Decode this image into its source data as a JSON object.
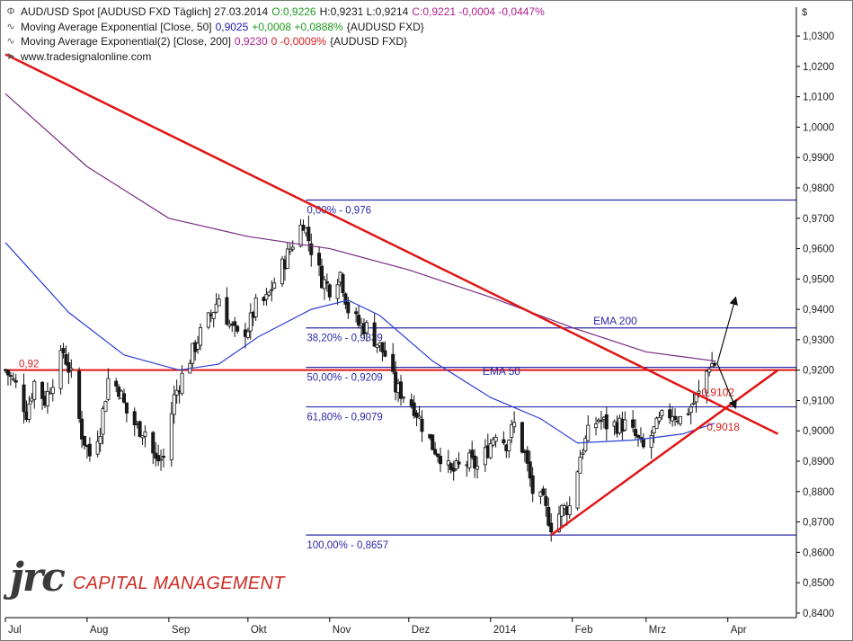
{
  "legend": {
    "row1": {
      "instrument": "AUD/USD Spot [AUDUSD FXD  Täglich] 27.03.2014",
      "open": "O:0,9226",
      "high_low": "H:0,9231 L:0,9214",
      "close_change": "C:0,9221 -0,0004 -0,0447%"
    },
    "row2": {
      "label": "Moving Average Exponential [Close, 50]",
      "value": "0,9025",
      "change": "+0,0008 +0,0888%",
      "source": "{AUDUSD FXD}"
    },
    "row3": {
      "label": "Moving Average Exponential(2) [Close, 200]",
      "value": "0,9230",
      "change": "0 -0,0009%",
      "source": "{AUDUSD FXD}"
    },
    "url": "www.tradesignalonline.com"
  },
  "logo": {
    "mark": "jrc",
    "text": "CAPITAL MANAGEMENT"
  },
  "colors": {
    "candle_up": "#ffffff",
    "candle_down": "#1a1a1a",
    "ema50": "#2a3fd4",
    "ema200": "#7a2a82",
    "trendline": "#e01515",
    "fib": "#2a2aa8",
    "annotation_red": "#d41c1c",
    "annotation_blue": "#2a2aa8"
  },
  "chart_data": {
    "type": "candlestick",
    "currency_label": "$",
    "ylim": [
      0.8385,
      1.0395
    ],
    "y_ticks": [
      "1,0300",
      "1,0200",
      "1,0100",
      "1,0000",
      "0,9900",
      "0,9800",
      "0,9700",
      "0,9600",
      "0,9500",
      "0,9400",
      "0,9300",
      "0,9200",
      "0,9100",
      "0,9000",
      "0,8900",
      "0,8800",
      "0,8700",
      "0,8600",
      "0,8500",
      "0,8400"
    ],
    "x_ticks": [
      "Jul",
      "Aug",
      "Sep",
      "Okt",
      "Nov",
      "Dez",
      "2014",
      "Feb",
      "Mrz",
      "Apr"
    ],
    "date_range": [
      "2013-07-01",
      "2014-04-27"
    ],
    "month_starts": [
      "2013-07-01",
      "2013-08-01",
      "2013-09-01",
      "2013-10-01",
      "2013-11-01",
      "2013-12-01",
      "2014-01-01",
      "2014-02-01",
      "2014-03-01",
      "2014-04-01"
    ],
    "close_series": {
      "dates": [
        "2013-07-01",
        "2013-07-05",
        "2013-07-09",
        "2013-07-12",
        "2013-07-16",
        "2013-07-19",
        "2013-07-23",
        "2013-07-26",
        "2013-07-30",
        "2013-08-02",
        "2013-08-06",
        "2013-08-09",
        "2013-08-13",
        "2013-08-16",
        "2013-08-20",
        "2013-08-23",
        "2013-08-27",
        "2013-08-30",
        "2013-09-03",
        "2013-09-06",
        "2013-09-10",
        "2013-09-13",
        "2013-09-17",
        "2013-09-20",
        "2013-09-24",
        "2013-09-27",
        "2013-10-01",
        "2013-10-04",
        "2013-10-08",
        "2013-10-11",
        "2013-10-15",
        "2013-10-18",
        "2013-10-22",
        "2013-10-25",
        "2013-10-29",
        "2013-11-01",
        "2013-11-05",
        "2013-11-08",
        "2013-11-12",
        "2013-11-15",
        "2013-11-19",
        "2013-11-22",
        "2013-11-26",
        "2013-11-29",
        "2013-12-03",
        "2013-12-06",
        "2013-12-10",
        "2013-12-13",
        "2013-12-17",
        "2013-12-20",
        "2013-12-24",
        "2013-12-27",
        "2013-12-31",
        "2014-01-03",
        "2014-01-07",
        "2014-01-10",
        "2014-01-14",
        "2014-01-17",
        "2014-01-21",
        "2014-01-24",
        "2014-01-28",
        "2014-01-31",
        "2014-02-04",
        "2014-02-07",
        "2014-02-11",
        "2014-02-14",
        "2014-02-18",
        "2014-02-21",
        "2014-02-25",
        "2014-02-28",
        "2014-03-04",
        "2014-03-07",
        "2014-03-11",
        "2014-03-14",
        "2014-03-18",
        "2014-03-21",
        "2014-03-25",
        "2014-03-27"
      ],
      "close": [
        0.92,
        0.915,
        0.906,
        0.916,
        0.91,
        0.917,
        0.926,
        0.918,
        0.899,
        0.892,
        0.901,
        0.917,
        0.914,
        0.906,
        0.901,
        0.9,
        0.89,
        0.891,
        0.911,
        0.918,
        0.926,
        0.932,
        0.938,
        0.944,
        0.935,
        0.931,
        0.934,
        0.941,
        0.943,
        0.949,
        0.956,
        0.962,
        0.969,
        0.96,
        0.95,
        0.947,
        0.952,
        0.94,
        0.935,
        0.934,
        0.929,
        0.925,
        0.914,
        0.912,
        0.908,
        0.902,
        0.895,
        0.892,
        0.886,
        0.888,
        0.89,
        0.888,
        0.894,
        0.9,
        0.896,
        0.902,
        0.892,
        0.88,
        0.876,
        0.869,
        0.874,
        0.875,
        0.892,
        0.899,
        0.904,
        0.902,
        0.902,
        0.902,
        0.898,
        0.894,
        0.9,
        0.904,
        0.906,
        0.904,
        0.908,
        0.912,
        0.922,
        0.9221
      ]
    },
    "ema50": {
      "dates": [
        "2013-07-01",
        "2013-07-25",
        "2013-08-15",
        "2013-09-05",
        "2013-09-20",
        "2013-10-05",
        "2013-10-25",
        "2013-11-08",
        "2013-11-20",
        "2013-12-10",
        "2014-01-01",
        "2014-01-20",
        "2014-02-03",
        "2014-02-25",
        "2014-03-15",
        "2014-03-27"
      ],
      "values": [
        0.962,
        0.939,
        0.925,
        0.92,
        0.922,
        0.931,
        0.94,
        0.943,
        0.938,
        0.923,
        0.911,
        0.904,
        0.896,
        0.897,
        0.899,
        0.9025
      ]
    },
    "ema200": {
      "dates": [
        "2013-07-01",
        "2013-08-01",
        "2013-09-01",
        "2013-10-01",
        "2013-11-01",
        "2013-12-01",
        "2014-01-01",
        "2014-02-01",
        "2014-03-01",
        "2014-03-27"
      ],
      "values": [
        1.011,
        0.987,
        0.97,
        0.964,
        0.96,
        0.953,
        0.944,
        0.934,
        0.926,
        0.923
      ]
    },
    "fibonacci": [
      {
        "level": 0.976,
        "label": "0,00% - 0,976"
      },
      {
        "level": 0.9339,
        "label": "38,20% - 0,9339"
      },
      {
        "level": 0.9209,
        "label": "50,00% - 0,9209"
      },
      {
        "level": 0.9079,
        "label": "61,80% - 0,9079"
      },
      {
        "level": 0.8657,
        "label": "100,00% - 0,8657"
      }
    ],
    "fib_start_date": "2013-10-23",
    "horizontal_level": {
      "value": 0.92,
      "label": "0,92"
    },
    "trendlines": [
      {
        "from": [
          "2013-07-01",
          1.024
        ],
        "to": [
          "2014-04-20",
          0.899
        ]
      },
      {
        "from": [
          "2014-01-24",
          0.8657
        ],
        "to": [
          "2014-04-20",
          0.92
        ]
      }
    ],
    "annotations": [
      {
        "text": "0,9102",
        "date": "2014-03-22",
        "value": 0.9115,
        "color": "red"
      },
      {
        "text": "0,9018",
        "date": "2014-03-24",
        "value": 0.9,
        "color": "red"
      },
      {
        "text": "EMA 200",
        "date": "2014-02-09",
        "value": 0.935,
        "color": "blue"
      },
      {
        "text": "EMA 50",
        "date": "2013-12-29",
        "value": 0.9185,
        "color": "blue"
      }
    ],
    "scenario_arrows": [
      {
        "from": [
          "2014-03-28",
          0.9222
        ],
        "to": [
          "2014-04-04",
          0.944
        ]
      },
      {
        "from": [
          "2014-03-28",
          0.9222
        ],
        "to": [
          "2014-04-04",
          0.9075
        ]
      }
    ]
  }
}
